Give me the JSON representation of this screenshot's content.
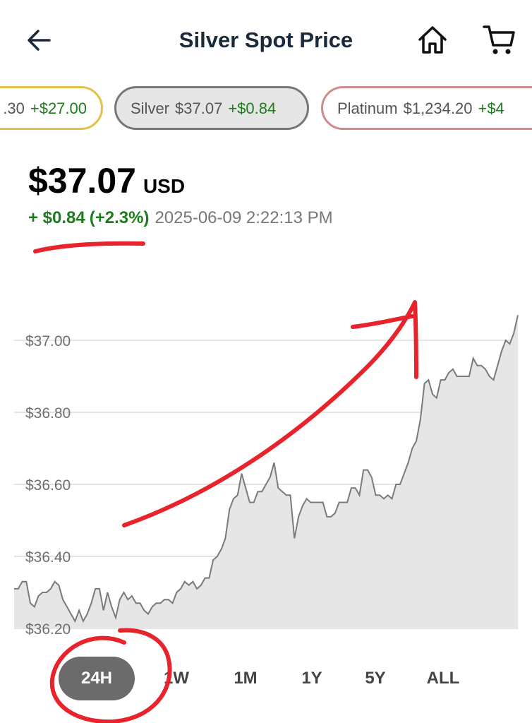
{
  "header": {
    "title": "Silver Spot Price"
  },
  "tickers": [
    {
      "label": ".30",
      "price": "",
      "change": "+$27.00"
    },
    {
      "label": "Silver",
      "price": "$37.07",
      "change": "+$0.84"
    },
    {
      "label": "Platinum",
      "price": "$1,234.20",
      "change": "+$4"
    }
  ],
  "price": {
    "value": "$37.07",
    "currency": "USD",
    "change": "+ $0.84",
    "percent": "(+2.3%)",
    "timestamp": "2025-06-09 2:22:13 PM"
  },
  "ranges": [
    "24H",
    "1W",
    "1M",
    "1Y",
    "5Y",
    "ALL"
  ],
  "active_range": "24H",
  "colors": {
    "title": "#1b2a3a",
    "positive": "#1e7b1e",
    "line": "#7a7a7a",
    "fill": "#e6e6e6",
    "annotation": "#e8232b"
  },
  "chart_data": {
    "type": "area",
    "ylim": [
      36.2,
      37.07
    ],
    "yticks": [
      {
        "value": 37.0,
        "label": "$37.00"
      },
      {
        "value": 36.8,
        "label": "$36.80"
      },
      {
        "value": 36.6,
        "label": "$36.60"
      },
      {
        "value": 36.4,
        "label": "$36.40"
      },
      {
        "value": 36.2,
        "label": "$36.20"
      }
    ],
    "values": [
      36.31,
      36.31,
      36.33,
      36.33,
      36.27,
      36.26,
      36.29,
      36.3,
      36.3,
      36.31,
      36.33,
      36.32,
      36.28,
      36.26,
      36.24,
      36.22,
      36.25,
      36.22,
      36.24,
      36.27,
      36.31,
      36.31,
      36.25,
      36.3,
      36.26,
      36.23,
      36.28,
      36.3,
      36.28,
      36.29,
      36.27,
      36.27,
      36.25,
      36.24,
      36.26,
      36.27,
      36.27,
      36.28,
      36.28,
      36.27,
      36.3,
      36.31,
      36.33,
      36.32,
      36.33,
      36.31,
      36.32,
      36.34,
      36.34,
      36.39,
      36.4,
      36.42,
      36.45,
      36.53,
      36.56,
      36.57,
      36.63,
      36.59,
      36.55,
      36.55,
      36.58,
      36.58,
      36.6,
      36.62,
      36.66,
      36.59,
      36.58,
      36.57,
      36.57,
      36.45,
      36.51,
      36.54,
      36.56,
      36.55,
      36.55,
      36.55,
      36.55,
      36.51,
      36.51,
      36.52,
      36.55,
      36.55,
      36.55,
      36.59,
      36.59,
      36.57,
      36.64,
      36.64,
      36.62,
      36.57,
      36.57,
      36.56,
      36.57,
      36.56,
      36.6,
      36.6,
      36.63,
      36.66,
      36.7,
      36.72,
      36.78,
      36.88,
      36.89,
      36.85,
      36.84,
      36.89,
      36.89,
      36.91,
      36.92,
      36.9,
      36.9,
      36.9,
      36.9,
      36.95,
      36.93,
      36.93,
      36.92,
      36.9,
      36.89,
      36.93,
      36.97,
      37.0,
      36.99,
      37.02,
      37.07
    ]
  }
}
